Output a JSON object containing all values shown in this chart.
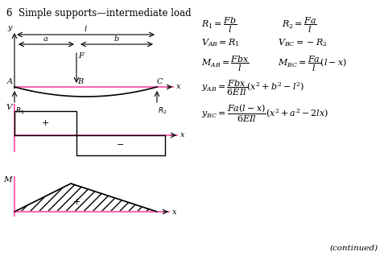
{
  "title": "6  Simple supports—intermediate load",
  "bg_color": "#ffffff",
  "pink": "#FF69B4",
  "black": "#000000",
  "gray": "#555555",
  "continued_text": "(continued)",
  "eqs": [
    "R_1 = \\frac{Fb}{l}",
    "R_2 = \\frac{Fa}{l}",
    "V_{AB} = R_1",
    "V_{BC} = -R_2",
    "M_{AB} = \\frac{Fbx}{l}",
    "M_{BC} = \\frac{Fa}{l}(l-x)",
    "y_{AB} = \\frac{Fbx}{6EIl}(x^2+b^2-l^2)",
    "y_{BC} = \\frac{Fa(l-x)}{6EIl}(x^2+a^2-2lx)"
  ]
}
